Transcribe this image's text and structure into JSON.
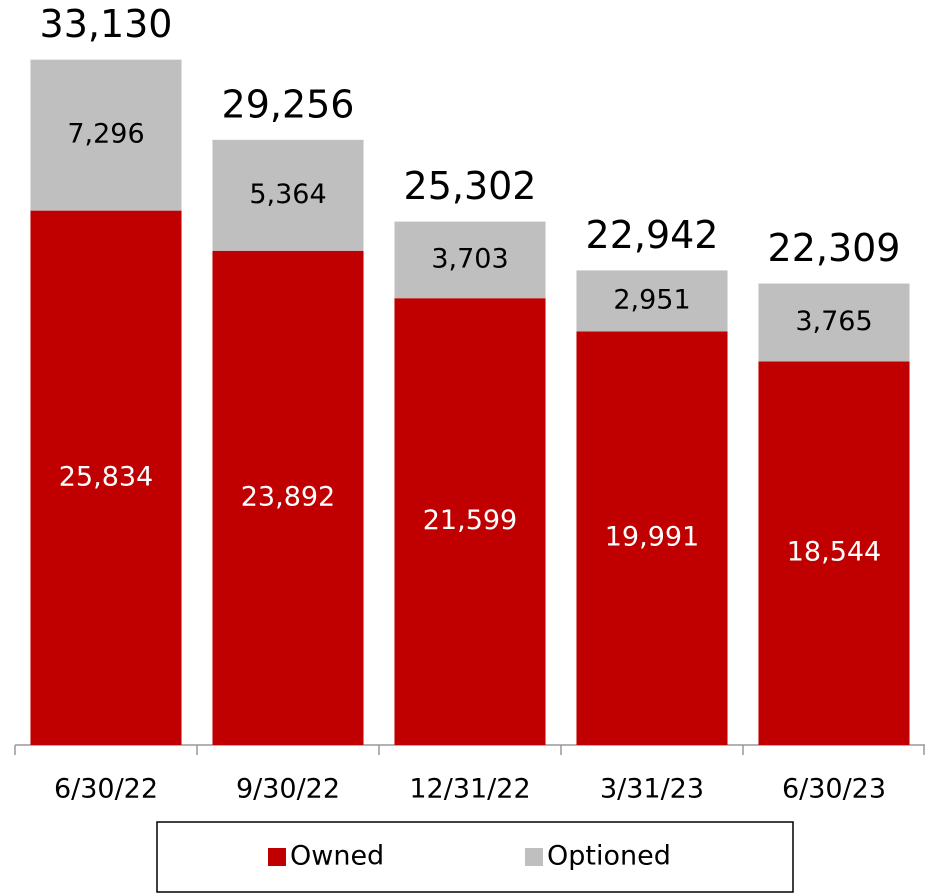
{
  "chart_data": {
    "type": "stacked_bar",
    "categories": [
      "6/30/22",
      "9/30/22",
      "12/31/22",
      "3/31/23",
      "6/30/23"
    ],
    "series": [
      {
        "name": "Owned",
        "color": "#c00000",
        "values": [
          25834,
          23892,
          21599,
          19991,
          18544
        ],
        "value_labels": [
          "25,834",
          "23,892",
          "21,599",
          "19,991",
          "18,544"
        ]
      },
      {
        "name": "Optioned",
        "color": "#bfbfbf",
        "values": [
          7296,
          5364,
          3703,
          2951,
          3765
        ],
        "value_labels": [
          "7,296",
          "5,364",
          "3,703",
          "2,951",
          "3,765"
        ]
      }
    ],
    "totals": {
      "values": [
        33130,
        29256,
        25302,
        22942,
        22309
      ],
      "value_labels": [
        "33,130",
        "29,256",
        "25,302",
        "22,942",
        "22,309"
      ]
    },
    "ylim": [
      0,
      35000
    ],
    "legend": "bottom"
  }
}
